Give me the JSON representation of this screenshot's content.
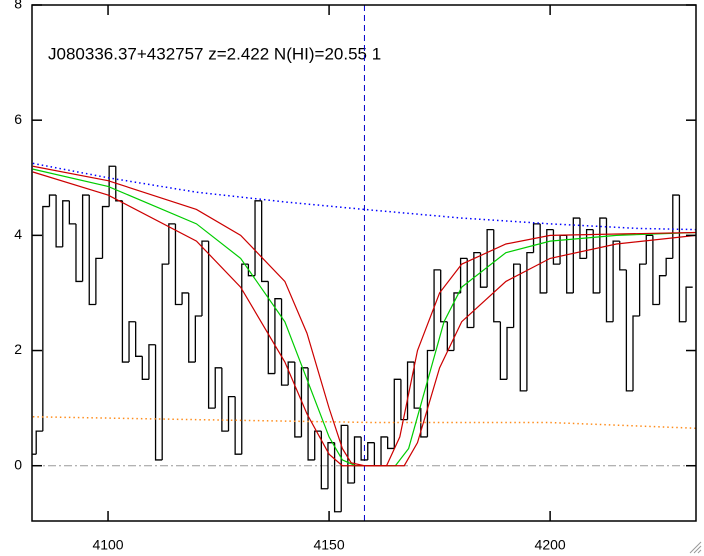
{
  "chart_data": {
    "type": "line",
    "annotation": "J080336.37+432757 z=2.422 N(HI)=20.55 1",
    "xlim": [
      4082.8,
      4233
    ],
    "ylim": [
      -0.96,
      8
    ],
    "xticks": [
      4100,
      4150,
      4200
    ],
    "yticks": [
      0,
      2,
      4,
      6,
      8
    ],
    "vline": 4158,
    "hline": 0,
    "series": [
      {
        "style": "step",
        "color": "#000000",
        "x": [
          4083,
          4084.5,
          4086,
          4087.5,
          4089,
          4090.5,
          4092,
          4093.5,
          4095,
          4096.5,
          4098,
          4099.5,
          4101,
          4102.5,
          4104,
          4105.5,
          4107,
          4108.5,
          4110,
          4111.5,
          4113,
          4114.5,
          4116,
          4117.5,
          4119,
          4120.5,
          4122,
          4123.5,
          4125,
          4126.5,
          4128,
          4129.5,
          4131,
          4132.5,
          4134,
          4135.5,
          4137,
          4138.5,
          4140,
          4141.5,
          4143,
          4144.5,
          4146,
          4147.5,
          4149,
          4150.5,
          4152,
          4153.5,
          4155,
          4156.5,
          4158,
          4159.5,
          4161,
          4162.5,
          4164,
          4165.5,
          4167,
          4168.5,
          4170,
          4171.5,
          4173,
          4174.5,
          4176,
          4177.5,
          4179,
          4180.5,
          4182,
          4183.5,
          4185,
          4186.5,
          4188,
          4189.5,
          4191,
          4192.5,
          4194,
          4195.5,
          4197,
          4198.5,
          4200,
          4201.5,
          4203,
          4204.5,
          4206,
          4207.5,
          4209,
          4210.5,
          4212,
          4213.5,
          4215,
          4216.5,
          4218,
          4219.5,
          4221,
          4222.5,
          4224,
          4225.5,
          4227,
          4228.5,
          4230,
          4231.5
        ],
        "values": [
          0.2,
          0.6,
          4.5,
          4.7,
          3.8,
          4.6,
          4.2,
          3.2,
          4.7,
          2.8,
          3.6,
          4.5,
          5.2,
          4.6,
          1.8,
          2.5,
          1.9,
          1.5,
          2.1,
          0.1,
          3.5,
          4.2,
          2.8,
          3.0,
          1.8,
          2.6,
          3.9,
          1.0,
          1.7,
          0.6,
          1.2,
          0.2,
          3.5,
          3.3,
          4.6,
          3.2,
          1.6,
          2.9,
          1.4,
          1.8,
          0.5,
          1.7,
          0.1,
          0.6,
          -0.4,
          0.4,
          -0.8,
          0.7,
          -0.3,
          0.5,
          0.1,
          0.4,
          0.0,
          0.5,
          0.3,
          1.5,
          0.8,
          1.8,
          1.0,
          0.5,
          2.0,
          3.4,
          2.5,
          2.0,
          3.0,
          3.6,
          2.4,
          3.7,
          3.1,
          4.1,
          2.5,
          1.5,
          2.4,
          3.5,
          1.3,
          3.7,
          4.2,
          3.0,
          4.1,
          3.5,
          4.0,
          3.0,
          4.3,
          3.6,
          4.1,
          3.0,
          4.3,
          2.5,
          3.9,
          3.4,
          1.3,
          2.6,
          3.5,
          4.0,
          2.8,
          3.3,
          3.6,
          4.7,
          2.5,
          3.1
        ]
      },
      {
        "style": "dotted",
        "color": "#0000ff",
        "x": [
          4083,
          4100,
          4120,
          4140,
          4158,
          4180,
          4200,
          4220,
          4233
        ],
        "values": [
          5.25,
          5.0,
          4.75,
          4.58,
          4.45,
          4.3,
          4.2,
          4.12,
          4.1
        ]
      },
      {
        "style": "dotted",
        "color": "#ff8c1a",
        "x": [
          4083,
          4120,
          4160,
          4200,
          4233
        ],
        "values": [
          0.85,
          0.8,
          0.75,
          0.75,
          0.65
        ]
      },
      {
        "style": "solid",
        "color": "#00cc00",
        "x": [
          4083,
          4100,
          4120,
          4130,
          4140,
          4145,
          4150,
          4153,
          4156,
          4165,
          4168,
          4172,
          4176,
          4180,
          4190,
          4200,
          4215,
          4233
        ],
        "values": [
          5.15,
          4.85,
          4.2,
          3.6,
          2.5,
          1.5,
          0.5,
          0.1,
          0.0,
          0.0,
          0.3,
          1.4,
          2.5,
          3.1,
          3.7,
          3.9,
          4.0,
          4.05
        ]
      },
      {
        "style": "solid",
        "color": "#cc0000",
        "x": [
          4083,
          4100,
          4120,
          4130,
          4140,
          4145,
          4150,
          4153,
          4155,
          4158,
          4163,
          4166,
          4170,
          4175,
          4180,
          4190,
          4200,
          4233
        ],
        "values": [
          5.2,
          4.95,
          4.45,
          4.0,
          3.2,
          2.3,
          1.0,
          0.3,
          0.05,
          0.0,
          0.0,
          0.5,
          2.0,
          3.0,
          3.5,
          3.85,
          4.0,
          4.05
        ]
      },
      {
        "style": "solid",
        "color": "#cc0000",
        "x": [
          4083,
          4100,
          4120,
          4130,
          4140,
          4145,
          4150,
          4153,
          4167,
          4170,
          4175,
          4180,
          4190,
          4200,
          4215,
          4233
        ],
        "values": [
          5.1,
          4.7,
          3.9,
          3.1,
          1.8,
          0.9,
          0.2,
          0.0,
          0.0,
          0.4,
          1.7,
          2.5,
          3.2,
          3.6,
          3.85,
          4.0
        ]
      }
    ]
  }
}
